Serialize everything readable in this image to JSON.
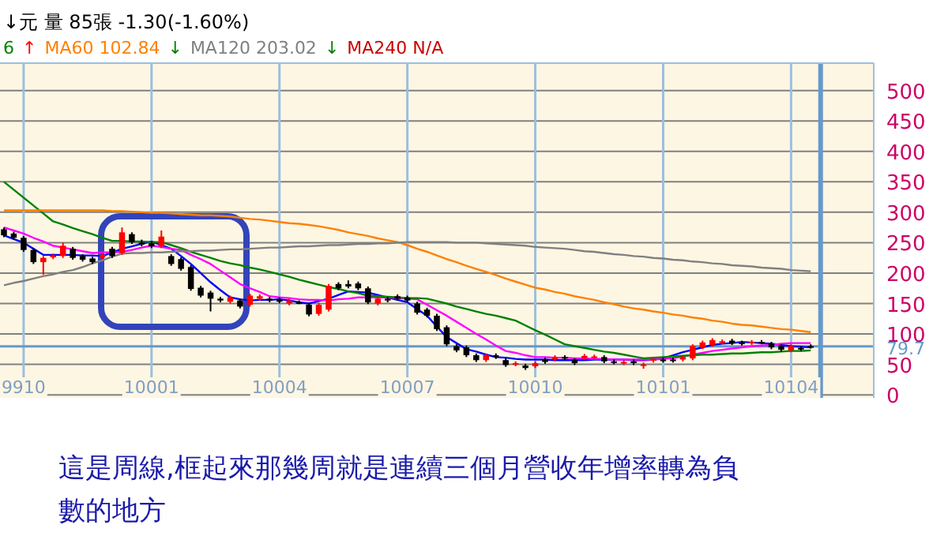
{
  "chart_data": {
    "type": "candlestick",
    "categories": [
      null,
      null,
      "9910",
      null,
      null,
      null,
      null,
      null,
      null,
      null,
      null,
      null,
      null,
      null,
      null,
      "10001",
      null,
      null,
      null,
      null,
      null,
      null,
      null,
      null,
      null,
      null,
      null,
      null,
      "10004",
      null,
      null,
      null,
      null,
      null,
      null,
      null,
      null,
      null,
      null,
      null,
      null,
      "10007",
      null,
      null,
      null,
      null,
      null,
      null,
      null,
      null,
      null,
      null,
      null,
      null,
      "10010",
      null,
      null,
      null,
      null,
      null,
      null,
      null,
      null,
      null,
      null,
      null,
      null,
      "10101",
      null,
      null,
      null,
      null,
      null,
      null,
      null,
      null,
      null,
      null,
      null,
      null,
      "10104",
      null,
      null
    ],
    "ohlc": [
      [
        272,
        275,
        259,
        262
      ],
      [
        265,
        268,
        255,
        258
      ],
      [
        258,
        261,
        235,
        238
      ],
      [
        238,
        241,
        215,
        218
      ],
      [
        218,
        228,
        197,
        225
      ],
      [
        226,
        232,
        223,
        229
      ],
      [
        228,
        250,
        225,
        245
      ],
      [
        240,
        243,
        222,
        225
      ],
      [
        228,
        231,
        219,
        222
      ],
      [
        224,
        227,
        215,
        218
      ],
      [
        226,
        233,
        223,
        230
      ],
      [
        240,
        243,
        225,
        228
      ],
      [
        233,
        275,
        230,
        267
      ],
      [
        264,
        267,
        248,
        251
      ],
      [
        250,
        255,
        244,
        247
      ],
      [
        249,
        252,
        241,
        244
      ],
      [
        244,
        270,
        241,
        260
      ],
      [
        228,
        231,
        212,
        215
      ],
      [
        223,
        226,
        204,
        207
      ],
      [
        210,
        213,
        171,
        174
      ],
      [
        176,
        179,
        160,
        163
      ],
      [
        168,
        171,
        137,
        158
      ],
      [
        158,
        161,
        152,
        155
      ],
      [
        153,
        163,
        150,
        160
      ],
      [
        155,
        158,
        142,
        145
      ],
      [
        148,
        166,
        145,
        163
      ],
      [
        158,
        165,
        155,
        162
      ],
      [
        158,
        161,
        152,
        155
      ],
      [
        157,
        160,
        150,
        153
      ],
      [
        150,
        158,
        147,
        155
      ],
      [
        152,
        155,
        149,
        152
      ],
      [
        148,
        151,
        129,
        132
      ],
      [
        133,
        151,
        130,
        148
      ],
      [
        140,
        182,
        137,
        179
      ],
      [
        182,
        185,
        172,
        175
      ],
      [
        182,
        188,
        175,
        178
      ],
      [
        183,
        186,
        172,
        175
      ],
      [
        175,
        178,
        149,
        152
      ],
      [
        150,
        161,
        147,
        158
      ],
      [
        158,
        161,
        152,
        155
      ],
      [
        162,
        165,
        155,
        158
      ],
      [
        160,
        163,
        152,
        155
      ],
      [
        150,
        153,
        132,
        135
      ],
      [
        140,
        143,
        127,
        130
      ],
      [
        130,
        133,
        105,
        108
      ],
      [
        111,
        114,
        80,
        83
      ],
      [
        80,
        83,
        70,
        73
      ],
      [
        78,
        81,
        62,
        65
      ],
      [
        65,
        68,
        54,
        57
      ],
      [
        57,
        68,
        54,
        65
      ],
      [
        65,
        68,
        59,
        62
      ],
      [
        57,
        60,
        46,
        49
      ],
      [
        50,
        55,
        47,
        52
      ],
      [
        48,
        51,
        41,
        44
      ],
      [
        47,
        55,
        44,
        52
      ],
      [
        58,
        61,
        51,
        54
      ],
      [
        58,
        65,
        55,
        62
      ],
      [
        62,
        65,
        57,
        60
      ],
      [
        57,
        60,
        49,
        52
      ],
      [
        60,
        67,
        57,
        64
      ],
      [
        62,
        66,
        59,
        63
      ],
      [
        62,
        65,
        52,
        55
      ],
      [
        55,
        58,
        50,
        53
      ],
      [
        52,
        57,
        49,
        54
      ],
      [
        55,
        58,
        49,
        52
      ],
      [
        48,
        53,
        43,
        50
      ],
      [
        56,
        62,
        53,
        59
      ],
      [
        58,
        61,
        53,
        56
      ],
      [
        58,
        61,
        53,
        56
      ],
      [
        58,
        65,
        55,
        62
      ],
      [
        60,
        83,
        57,
        80
      ],
      [
        78,
        89,
        75,
        86
      ],
      [
        82,
        93,
        79,
        90
      ],
      [
        86,
        91,
        83,
        88
      ],
      [
        89,
        92,
        82,
        85
      ],
      [
        86,
        89,
        81,
        84
      ],
      [
        85,
        90,
        82,
        87
      ],
      [
        87,
        90,
        83,
        86
      ],
      [
        84,
        87,
        75,
        78
      ],
      [
        80,
        83,
        71,
        74
      ],
      [
        73,
        83,
        70,
        80
      ],
      [
        77,
        80,
        72,
        75
      ],
      [
        80,
        83,
        76,
        79
      ]
    ],
    "series": [
      {
        "type": "line",
        "color": "#0000ff",
        "values": [
          262,
          256,
          250,
          240,
          230,
          230,
          230,
          230,
          229,
          229,
          228,
          234,
          240,
          244,
          248,
          252,
          246,
          240,
          228,
          215,
          200,
          185,
          172,
          160,
          157,
          155,
          156,
          156,
          157,
          155,
          152,
          150,
          154,
          158,
          164,
          170,
          169,
          168,
          164,
          160,
          156,
          152,
          141,
          130,
          112,
          95,
          85,
          75,
          71,
          66,
          62,
          61,
          59,
          58,
          58,
          58,
          57,
          57,
          57,
          57,
          58,
          58,
          58,
          58,
          57,
          57,
          58,
          60,
          65,
          70,
          74,
          78,
          82,
          84,
          85,
          87,
          86,
          85,
          84,
          82,
          80,
          79,
          78
        ]
      },
      {
        "type": "line",
        "color": "#ff00ff",
        "values": [
          275,
          270,
          265,
          258,
          252,
          245,
          242,
          239,
          236,
          233,
          234,
          234,
          235,
          238,
          242,
          245,
          243,
          240,
          238,
          230,
          223,
          215,
          204,
          193,
          182,
          175,
          169,
          162,
          160,
          159,
          157,
          156,
          156,
          155,
          157,
          158,
          160,
          160,
          160,
          160,
          159,
          158,
          157,
          148,
          139,
          130,
          120,
          110,
          100,
          91,
          81,
          72,
          69,
          65,
          62,
          62,
          61,
          61,
          60,
          60,
          59,
          59,
          58,
          58,
          58,
          58,
          58,
          59,
          60,
          63,
          66,
          69,
          72,
          74,
          76,
          78,
          80,
          81,
          82,
          84,
          85,
          85,
          85
        ]
      },
      {
        "type": "line",
        "color": "#008000",
        "values": [
          350,
          337,
          324,
          311,
          298,
          285,
          280,
          274,
          269,
          264,
          258,
          253,
          253,
          252,
          252,
          251,
          251,
          246,
          241,
          235,
          230,
          225,
          220,
          216,
          213,
          209,
          206,
          202,
          198,
          194,
          189,
          185,
          181,
          177,
          174,
          170,
          167,
          163,
          162,
          161,
          160,
          159,
          159,
          158,
          154,
          150,
          145,
          141,
          137,
          133,
          130,
          126,
          122,
          114,
          106,
          99,
          91,
          83,
          80,
          77,
          74,
          71,
          69,
          66,
          63,
          60,
          61,
          62,
          63,
          64,
          65,
          66,
          66,
          67,
          68,
          68,
          69,
          70,
          70,
          71,
          72,
          72,
          73
        ]
      },
      {
        "type": "line",
        "color": "#ff8000",
        "values": [
          303,
          303,
          303,
          303,
          303,
          303,
          303,
          303,
          303,
          303,
          303,
          302,
          302,
          301,
          300,
          299,
          299,
          298,
          297,
          296,
          295,
          295,
          294,
          293,
          291,
          289,
          288,
          286,
          284,
          282,
          281,
          279,
          277,
          274,
          271,
          267,
          264,
          261,
          257,
          254,
          251,
          246,
          240,
          235,
          229,
          223,
          218,
          212,
          207,
          202,
          197,
          191,
          186,
          181,
          176,
          173,
          169,
          166,
          162,
          159,
          156,
          152,
          149,
          145,
          142,
          140,
          137,
          135,
          132,
          130,
          127,
          125,
          122,
          120,
          117,
          115,
          114,
          112,
          110,
          108,
          107,
          105,
          103
        ]
      },
      {
        "type": "line",
        "color": "#808080",
        "values": [
          180,
          184,
          187,
          191,
          195,
          198,
          202,
          205,
          210,
          216,
          221,
          227,
          232,
          233,
          233,
          234,
          234,
          235,
          236,
          236,
          237,
          237,
          238,
          239,
          239,
          240,
          241,
          242,
          242,
          243,
          244,
          244,
          245,
          246,
          246,
          247,
          248,
          248,
          249,
          249,
          250,
          251,
          251,
          251,
          251,
          251,
          250,
          250,
          250,
          249,
          248,
          247,
          246,
          245,
          243,
          242,
          241,
          240,
          238,
          236,
          235,
          233,
          231,
          230,
          228,
          227,
          225,
          224,
          222,
          221,
          219,
          218,
          216,
          215,
          213,
          212,
          211,
          209,
          208,
          207,
          205,
          204,
          203
        ]
      }
    ],
    "ylim": [
      -5,
      545
    ],
    "yticks": [
      0,
      50,
      100,
      150,
      200,
      250,
      300,
      350,
      400,
      450,
      500
    ],
    "grid": true,
    "ref_lines": [
      {
        "axis": "y",
        "value": 79.7,
        "label": "79.7",
        "color": "#6699cc"
      }
    ],
    "annotations": [
      "↓元 量 85張 -1.30(-1.60%)",
      "6",
      "↑",
      "MA60 102.84",
      "↓",
      "MA120 203.02",
      "↓",
      "MA240 N/A",
      "這是周線,框起來那幾周就是連續三個月營收年增率轉為負數的地方"
    ]
  }
}
